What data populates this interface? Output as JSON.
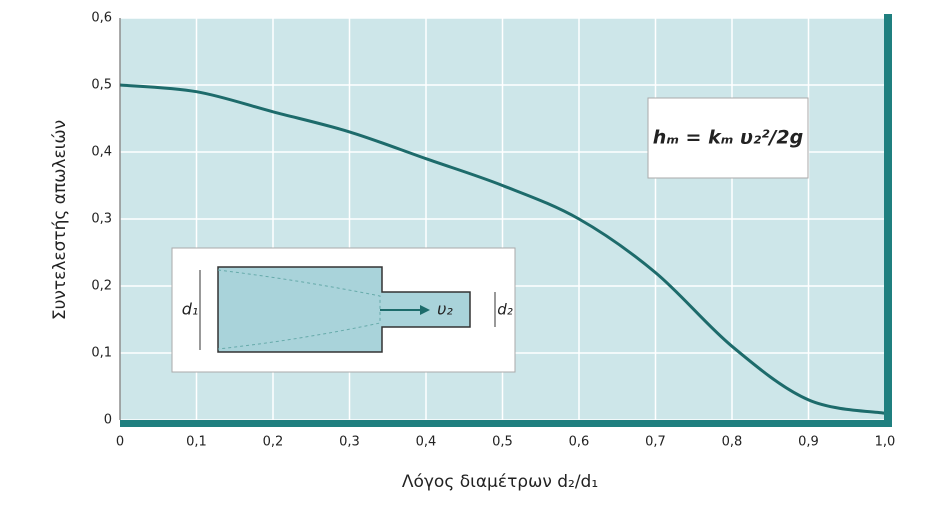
{
  "chart_data": {
    "type": "line",
    "y_label": "Συντελεστής απωλειών",
    "x_label": "Λόγος διαμέτρων d₂/d₁",
    "formula": "hₘ = kₘ υ₂²/2g",
    "inset_labels": [
      "d₁",
      "υ₂",
      "d₂"
    ],
    "x": [
      0,
      0.1,
      0.2,
      0.3,
      0.4,
      0.5,
      0.6,
      0.7,
      0.8,
      0.9,
      1.0
    ],
    "series": [
      {
        "color": "#1d6b6b",
        "values": [
          0.5,
          0.49,
          0.46,
          0.43,
          0.39,
          0.35,
          0.3,
          0.22,
          0.11,
          0.03,
          0.01
        ]
      }
    ],
    "xlim": [
      0,
      1.0
    ],
    "ylim": [
      0,
      0.6
    ],
    "xticks": [
      0,
      {
        "value": 0.1,
        "label": "0,1"
      },
      {
        "value": 0.2,
        "label": "0,2"
      },
      {
        "value": 0.3,
        "label": "0,3"
      },
      {
        "value": 0.4,
        "label": "0,4"
      },
      {
        "value": 0.5,
        "label": "0,5"
      },
      {
        "value": 0.6,
        "label": "0,6"
      },
      {
        "value": 0.7,
        "label": "0,7"
      },
      {
        "value": 0.8,
        "label": "0,8"
      },
      {
        "value": 0.9,
        "label": "0,9"
      },
      {
        "value": 1.0,
        "label": "1,0"
      }
    ],
    "yticks": [
      0,
      {
        "value": 0.1,
        "label": "0,1"
      },
      {
        "value": 0.2,
        "label": "0,2"
      },
      {
        "value": 0.3,
        "label": "0,3"
      },
      {
        "value": 0.4,
        "label": "0,4"
      },
      {
        "value": 0.5,
        "label": "0,5"
      },
      {
        "value": 0.6,
        "label": "0,6"
      }
    ],
    "grid": true
  }
}
